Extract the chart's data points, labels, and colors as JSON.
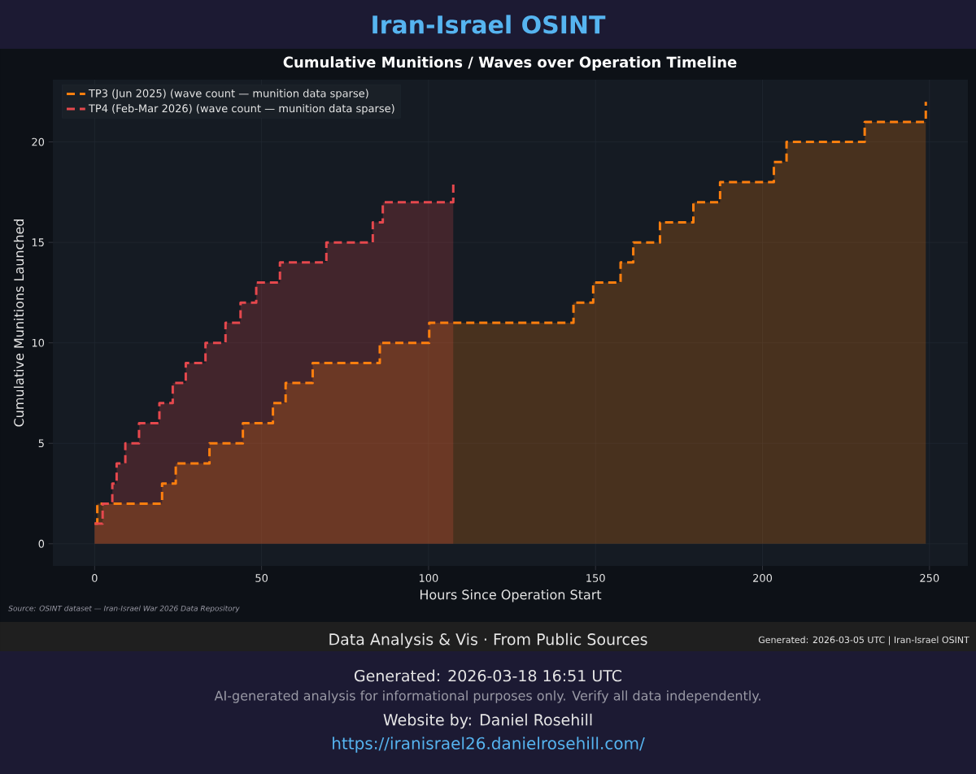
{
  "chart_data": {
    "type": "area",
    "title": "Cumulative Munitions / Waves over Operation Timeline",
    "xlabel": "Hours Since Operation Start",
    "ylabel": "Cumulative Munitions Launched",
    "series": [
      {
        "name": "TP3 (Jun 2025) (wave count — munition data sparse)",
        "color": "#ff7f0e",
        "x": [
          0,
          0.8,
          0.8,
          20.2,
          20.2,
          24.3,
          24.3,
          34.4,
          34.4,
          44.4,
          44.4,
          53.4,
          53.4,
          57.2,
          57.2,
          65.3,
          65.3,
          85.4,
          85.4,
          100.2,
          100.2,
          143.4,
          143.4,
          149.3,
          149.3,
          157.5,
          157.5,
          161.3,
          161.3,
          169.3,
          169.3,
          179.3,
          179.3,
          187.3,
          187.3,
          203.4,
          203.4,
          207.2,
          207.2,
          230.6,
          230.6,
          248.9,
          248.9
        ],
        "values": [
          1,
          1,
          2,
          2,
          3,
          3,
          4,
          4,
          5,
          5,
          6,
          6,
          7,
          7,
          8,
          8,
          9,
          9,
          10,
          10,
          11,
          11,
          12,
          12,
          13,
          13,
          14,
          14,
          15,
          15,
          16,
          16,
          17,
          17,
          18,
          18,
          19,
          19,
          20,
          20,
          21,
          21,
          22
        ]
      },
      {
        "name": "TP4 (Feb-Mar 2026) (wave count — munition data sparse)",
        "color": "#e5484d",
        "x": [
          0,
          2.4,
          2.4,
          5.3,
          5.3,
          6.6,
          6.6,
          9.2,
          9.2,
          13.3,
          13.3,
          19.4,
          19.4,
          23.4,
          23.4,
          27.3,
          27.3,
          33.2,
          33.2,
          39.2,
          39.2,
          43.7,
          43.7,
          48.4,
          48.4,
          55.5,
          55.5,
          69.4,
          69.4,
          83.3,
          83.3,
          86.3,
          86.3,
          107.4,
          107.4
        ],
        "values": [
          1,
          1,
          2,
          2,
          3,
          3,
          4,
          4,
          5,
          5,
          6,
          6,
          7,
          7,
          8,
          8,
          9,
          9,
          10,
          10,
          11,
          11,
          12,
          12,
          13,
          13,
          14,
          14,
          15,
          15,
          16,
          16,
          17,
          17,
          18
        ]
      }
    ],
    "xlim": [
      -12.5,
      261.5
    ],
    "ylim": [
      -1.1,
      23.1
    ],
    "xticks": [
      0,
      50,
      100,
      150,
      200,
      250
    ],
    "yticks": [
      0,
      5,
      10,
      15,
      20
    ],
    "grid": true,
    "legend": "top left",
    "line_style": "dashed",
    "annotations": [
      "Iran-Israel OSINT",
      "Source: OSINT dataset — Iran-Israel War 2026 Data Repository",
      "Data Analysis & Vis · From Public Sources",
      "Generated: 2026-03-05 UTC | Iran-Israel OSINT",
      "Generated: 2026-03-18 16:51 UTC",
      "AI-generated analysis for informational purposes only. Verify all data independently.",
      "Website by: Daniel Rosehill",
      "https://iranisrael26.danielrosehill.com/"
    ]
  }
}
